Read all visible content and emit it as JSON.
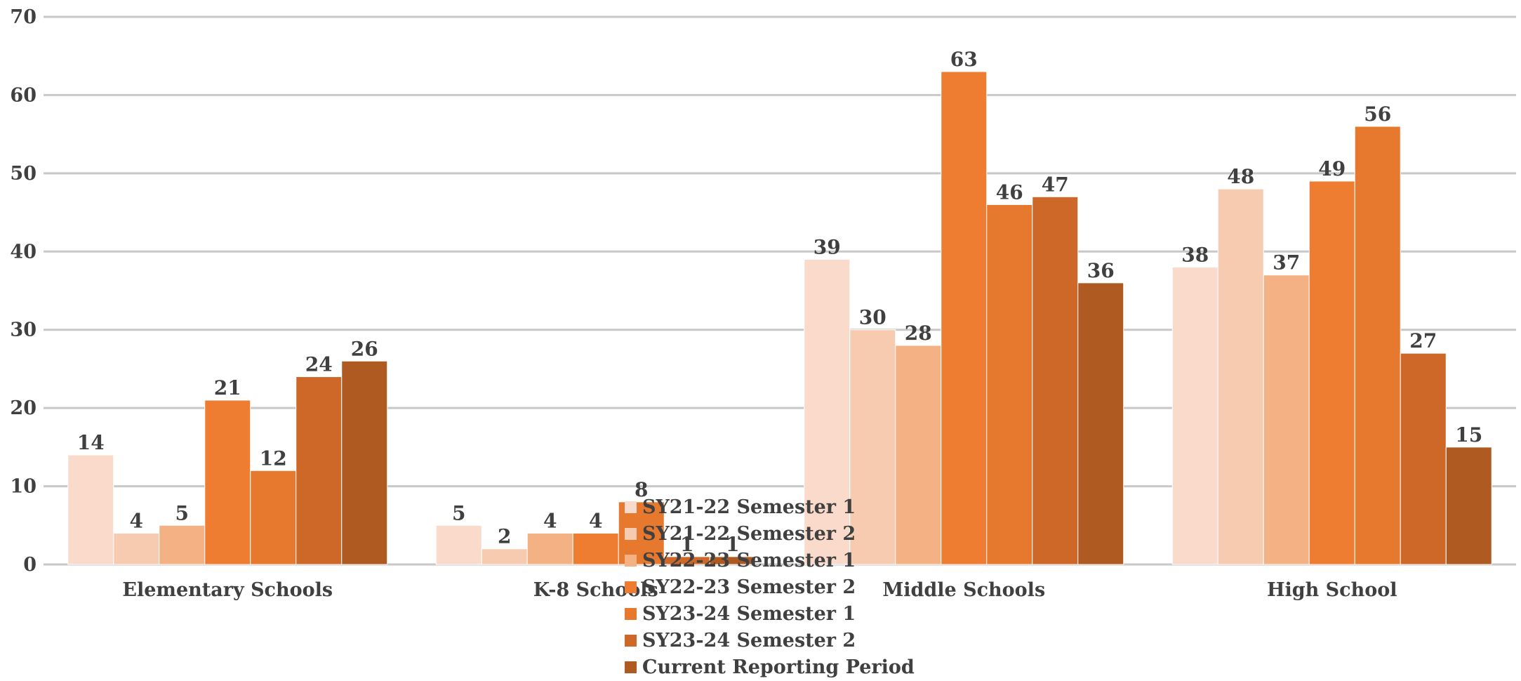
{
  "chart_data": {
    "type": "bar",
    "title": "",
    "xlabel": "",
    "ylabel": "",
    "ylim": [
      0,
      70
    ],
    "yticks": [
      0,
      10,
      20,
      30,
      40,
      50,
      60,
      70
    ],
    "grid": true,
    "legend_position": "bottom-center",
    "categories": [
      "Elementary Schools",
      "K-8 Schools",
      "Middle Schools",
      "High School"
    ],
    "series": [
      {
        "name": "SY21-22 Semester 1",
        "color": "#FADACA",
        "values": [
          14,
          5,
          39,
          38
        ]
      },
      {
        "name": "SY21-22 Semester 2",
        "color": "#F7CBB0",
        "values": [
          4,
          2,
          30,
          48
        ]
      },
      {
        "name": "SY22-23 Semester 1",
        "color": "#F4B183",
        "values": [
          5,
          4,
          28,
          37
        ]
      },
      {
        "name": "SY22-23 Semester 2",
        "color": "#EE7D31",
        "values": [
          21,
          4,
          63,
          49
        ]
      },
      {
        "name": "SY23-24 Semester 1",
        "color": "#E6792E",
        "values": [
          12,
          8,
          46,
          56
        ]
      },
      {
        "name": "SY23-24 Semester 2",
        "color": "#CD6828",
        "values": [
          24,
          1,
          47,
          27
        ]
      },
      {
        "name": "Current Reporting Period",
        "color": "#AE5A21",
        "values": [
          26,
          1,
          36,
          15
        ]
      }
    ]
  }
}
